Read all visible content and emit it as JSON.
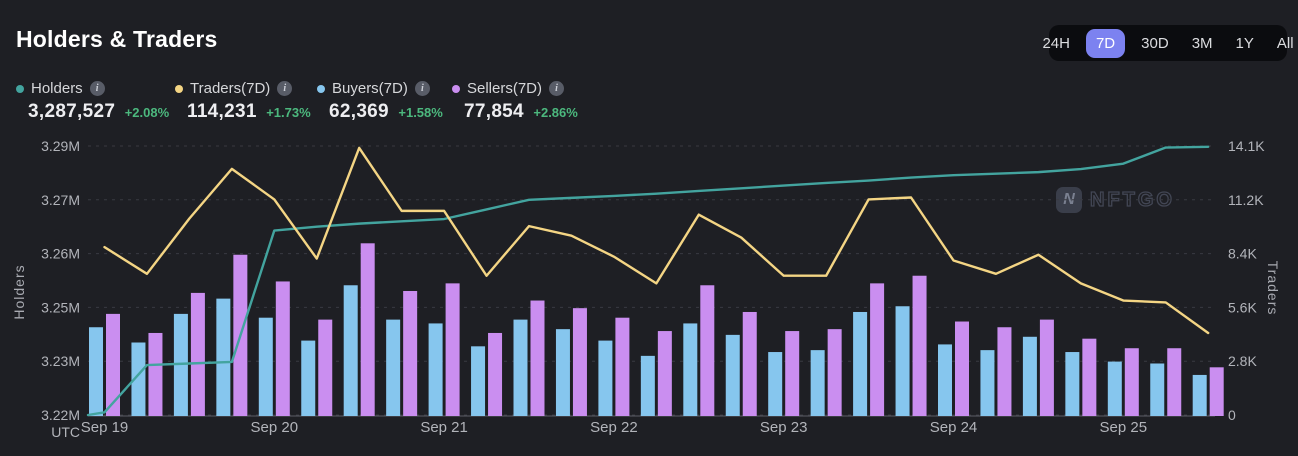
{
  "header": {
    "title": "Holders & Traders",
    "time_ranges": [
      "24H",
      "7D",
      "30D",
      "3M",
      "1Y",
      "All"
    ],
    "active_range": "7D"
  },
  "legend": {
    "holders": {
      "label": "Holders",
      "value": "3,287,527",
      "change": "+2.08%",
      "color": "#43a49f"
    },
    "traders": {
      "label": "Traders(7D)",
      "value": "114,231",
      "change": "+1.73%",
      "color": "#f4d584"
    },
    "buyers": {
      "label": "Buyers(7D)",
      "value": "62,369",
      "change": "+1.58%",
      "color": "#86c6ee"
    },
    "sellers": {
      "label": "Sellers(7D)",
      "value": "77,854",
      "change": "+2.86%",
      "color": "#ca8ef0"
    }
  },
  "watermark": {
    "text": "NFTGO",
    "icon_letter": "N"
  },
  "colors": {
    "background": "#1e1f24",
    "active_range_bg": "#7c82f0",
    "positive_change": "#4cb87e",
    "grid": "#393a41",
    "axis_text": "#b2b4ba"
  },
  "chart_data": {
    "type": "mixed",
    "x_labels": [
      "Sep 19",
      "Sep 20",
      "Sep 21",
      "Sep 22",
      "Sep 23",
      "Sep 24",
      "Sep 25"
    ],
    "points_per_day": 4,
    "interval_hours": 6,
    "time_axis_note": "UTC",
    "legend_position": "top-left",
    "grid": "dashed-horizontal",
    "left_axis": {
      "title": "Holders",
      "unit": "M",
      "range": [
        3.22,
        3.29
      ],
      "ticks_top_to_bottom": [
        "3.29M",
        "3.27M",
        "3.26M",
        "3.25M",
        "3.23M",
        "3.22M"
      ]
    },
    "right_axis": {
      "title": "Traders",
      "unit": "K",
      "range": [
        0,
        14.1
      ],
      "ticks_top_to_bottom": [
        "14.1K",
        "11.2K",
        "8.4K",
        "5.6K",
        "2.8K",
        "0"
      ]
    },
    "series": [
      {
        "id": "holders",
        "name": "Holders",
        "type": "line",
        "axis": "left",
        "color": "#43a49f",
        "unit": "M",
        "values": [
          3.2207,
          3.233,
          3.2334,
          3.2338,
          3.268,
          3.269,
          3.2698,
          3.2704,
          3.271,
          3.2735,
          3.276,
          3.2765,
          3.277,
          3.2776,
          3.2783,
          3.279,
          3.2797,
          3.2804,
          3.281,
          3.2818,
          3.2824,
          3.2828,
          3.2832,
          3.284,
          3.2854,
          3.2896,
          3.2898
        ]
      },
      {
        "id": "traders",
        "name": "Traders(7D)",
        "type": "line",
        "axis": "right",
        "color": "#f4d584",
        "unit": "K",
        "values": [
          8.8,
          7.4,
          10.3,
          12.9,
          11.3,
          8.2,
          14.0,
          10.7,
          10.7,
          7.3,
          9.9,
          9.4,
          8.3,
          6.9,
          10.5,
          9.3,
          7.3,
          7.3,
          11.3,
          11.4,
          8.1,
          7.4,
          8.4,
          6.9,
          6.0,
          5.9,
          4.3
        ]
      },
      {
        "id": "buyers",
        "name": "Buyers(7D)",
        "type": "bar",
        "axis": "right",
        "color": "#86c6ee",
        "unit": "K",
        "values": [
          4.6,
          3.8,
          5.3,
          6.1,
          5.1,
          3.9,
          6.8,
          5.0,
          4.8,
          3.6,
          5.0,
          4.5,
          3.9,
          3.1,
          4.8,
          4.2,
          3.3,
          3.4,
          5.4,
          5.7,
          3.7,
          3.4,
          4.1,
          3.3,
          2.8,
          2.7,
          2.1
        ]
      },
      {
        "id": "sellers",
        "name": "Sellers(7D)",
        "type": "bar",
        "axis": "right",
        "color": "#ca8ef0",
        "unit": "K",
        "values": [
          5.3,
          4.3,
          6.4,
          8.4,
          7.0,
          5.0,
          9.0,
          6.5,
          6.9,
          4.3,
          6.0,
          5.6,
          5.1,
          4.4,
          6.8,
          5.4,
          4.4,
          4.5,
          6.9,
          7.3,
          4.9,
          4.6,
          5.0,
          4.0,
          3.5,
          3.5,
          2.5
        ]
      }
    ]
  }
}
